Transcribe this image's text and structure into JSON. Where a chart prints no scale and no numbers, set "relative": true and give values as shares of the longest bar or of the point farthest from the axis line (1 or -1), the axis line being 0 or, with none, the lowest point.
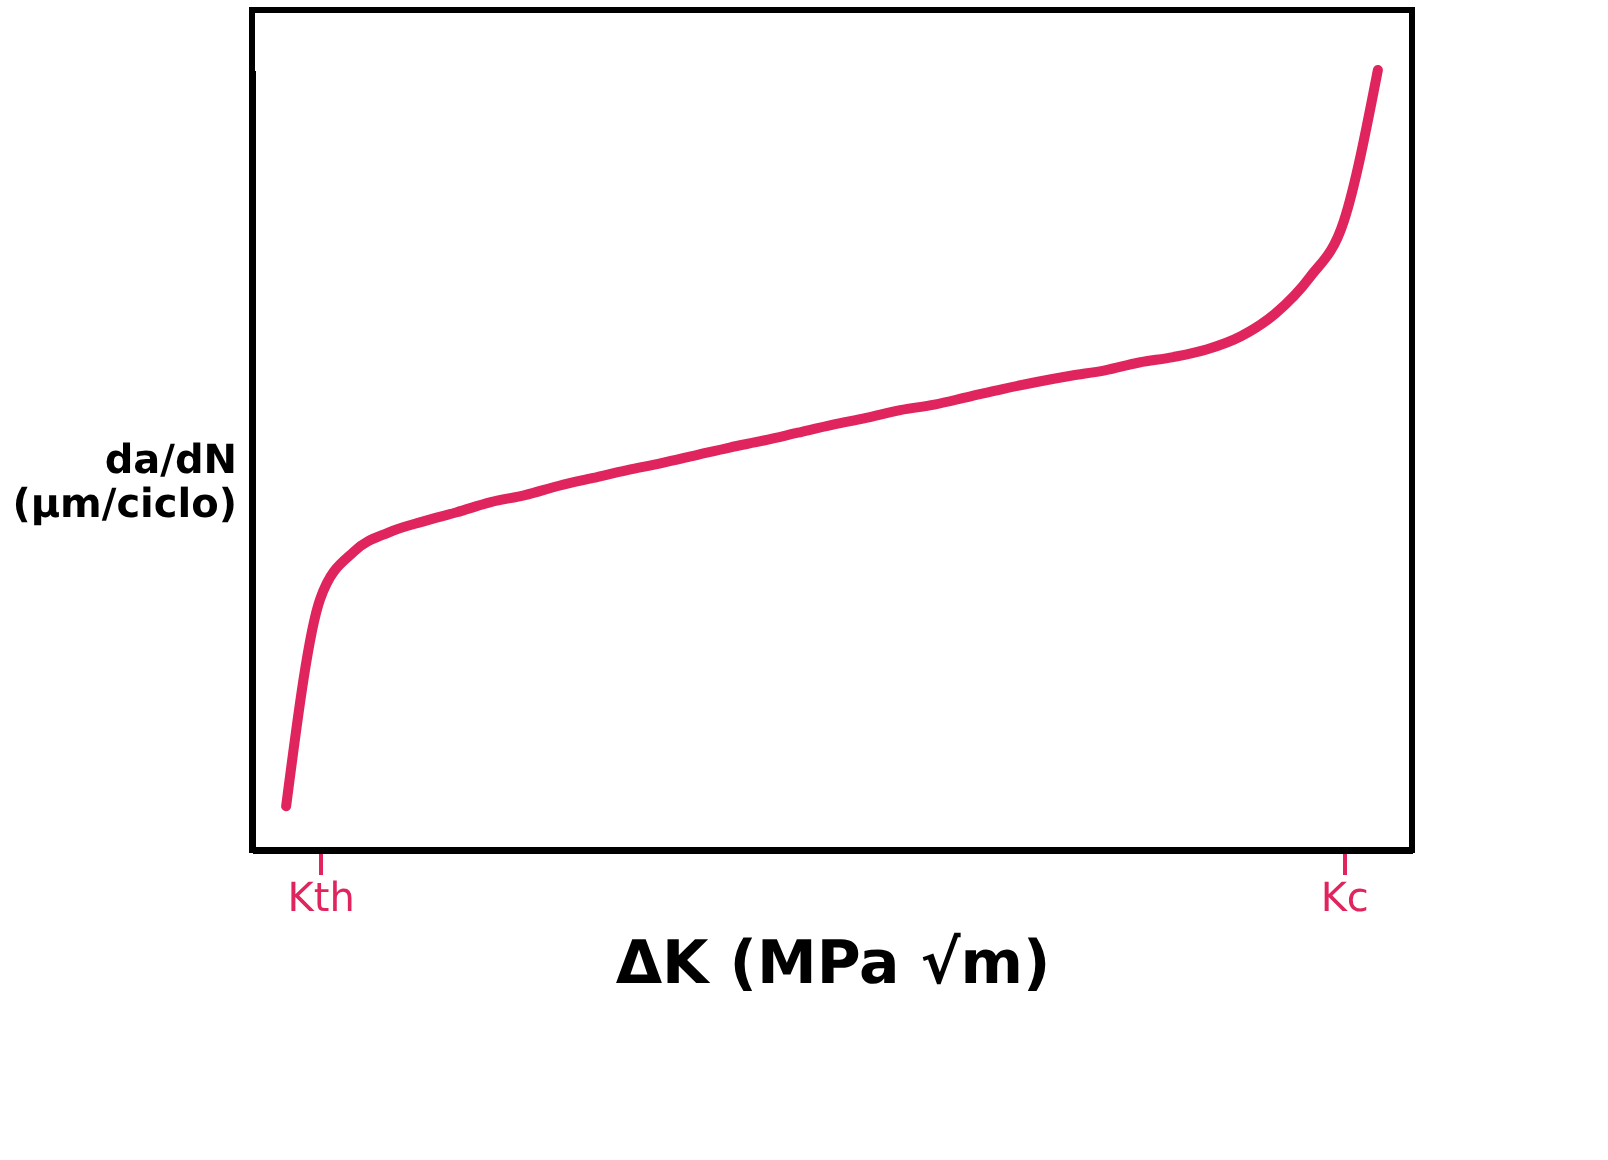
{
  "chart_data": {
    "type": "line",
    "relative": true,
    "xlabel": "ΔK (MPa √m)",
    "ylabel": "da/dN (μm/ciclo)",
    "categories": [
      null,
      "Kth",
      null,
      null,
      null,
      null,
      null,
      null,
      null,
      null,
      null,
      null,
      null,
      null,
      null,
      null,
      null,
      null,
      null,
      null,
      null,
      null,
      null,
      null,
      null,
      null,
      null,
      null,
      null,
      null,
      null,
      "Kc",
      null
    ],
    "series": [
      {
        "color": "#e0245e",
        "values": [
          0.056,
          0.322,
          0.383,
          0.407,
          0.421,
          0.433,
          0.446,
          0.455,
          0.467,
          0.477,
          0.487,
          0.496,
          0.506,
          0.516,
          0.525,
          0.535,
          0.545,
          0.554,
          0.564,
          0.571,
          0.581,
          0.591,
          0.6,
          0.608,
          0.615,
          0.625,
          0.632,
          0.642,
          0.659,
          0.688,
          0.734,
          0.806,
          1.0
        ]
      }
    ],
    "tick_labels": "x",
    "grid": false,
    "marker": "none",
    "line_style": "solid"
  }
}
